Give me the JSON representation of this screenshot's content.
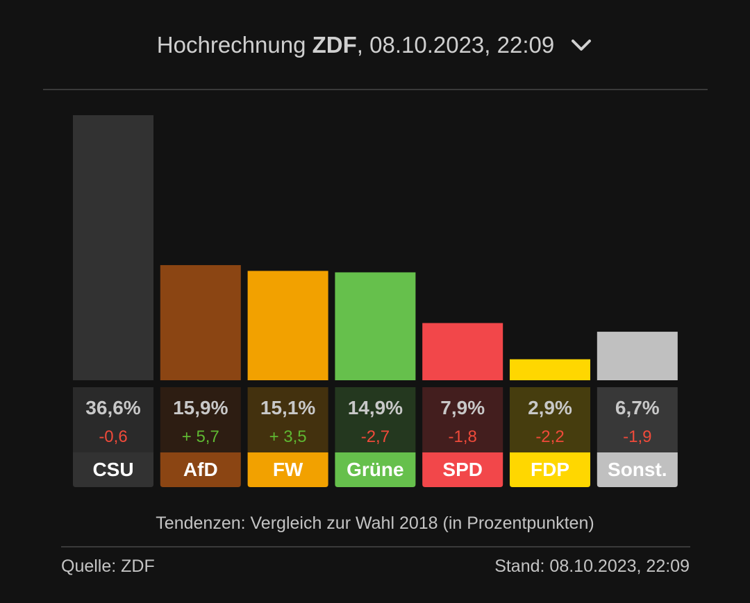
{
  "header": {
    "prefix": "Hochrechnung ",
    "source": "ZDF",
    "datetime": ", 08.10.2023, 22:09",
    "toggle_icon": "chevron-down-icon"
  },
  "chart_data": {
    "type": "bar",
    "categories": [
      "CSU",
      "AfD",
      "FW",
      "Grüne",
      "SPD",
      "FDP",
      "Sonst."
    ],
    "values": [
      36.6,
      15.9,
      15.1,
      14.9,
      7.9,
      2.9,
      6.7
    ],
    "value_labels": [
      "36,6%",
      "15,9%",
      "15,1%",
      "14,9%",
      "7,9%",
      "2,9%",
      "6,7%"
    ],
    "changes": [
      -0.6,
      5.7,
      3.5,
      -2.7,
      -1.8,
      -2.2,
      -1.9
    ],
    "change_labels": [
      "-0,6",
      "+ 5,7",
      "+ 3,5",
      "-2,7",
      "-1,8",
      "-2,2",
      "-1,9"
    ],
    "colors": [
      "#323232",
      "#8b4513",
      "#f2a100",
      "#66c04c",
      "#f2474a",
      "#ffd700",
      "#c0c0c0"
    ],
    "label_text_colors": [
      "#ffffff",
      "#ffffff",
      "#ffffff",
      "#ffffff",
      "#ffffff",
      "#ffffff",
      "#ffffff"
    ],
    "positive_color": "#5fb832",
    "negative_color": "#f04a3a",
    "ylim": [
      0,
      36.6
    ],
    "grid": false,
    "legend": "none"
  },
  "footer": {
    "note": "Tendenzen: Vergleich zur Wahl 2018 (in Prozentpunkten)",
    "source": "Quelle: ZDF",
    "stand": "Stand: 08.10.2023, 22:09"
  }
}
